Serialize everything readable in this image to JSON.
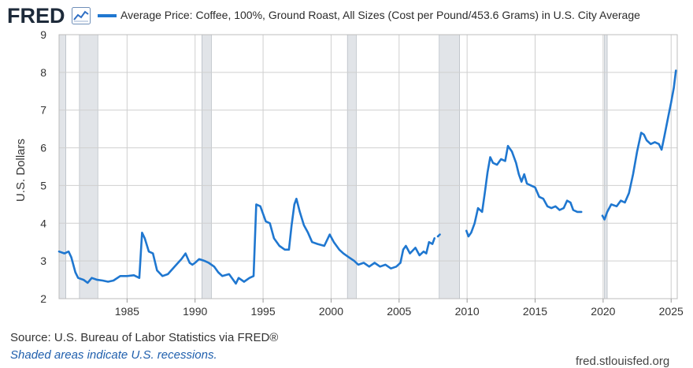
{
  "header": {
    "logo_text": "FRED",
    "logo_icon": "chart-line-icon",
    "legend_label": "Average Price: Coffee, 100%, Ground Roast, All Sizes (Cost per Pound/453.6 Grams) in U.S. City Average",
    "series_color": "#1f77d0"
  },
  "footer": {
    "source": "Source: U.S. Bureau of Labor Statistics via FRED®",
    "shaded_note": "Shaded areas indicate U.S. recessions.",
    "site": "fred.stlouisfed.org"
  },
  "chart_data": {
    "type": "line",
    "title": "",
    "xlabel": "",
    "ylabel": "U.S. Dollars",
    "xlim": [
      1980.0,
      2025.45
    ],
    "ylim": [
      2,
      9
    ],
    "x_ticks": [
      1985,
      1990,
      1995,
      2000,
      2005,
      2010,
      2015,
      2020,
      2025
    ],
    "y_ticks": [
      2,
      3,
      4,
      5,
      6,
      7,
      8,
      9
    ],
    "grid": true,
    "legend_position": "top",
    "recession_color": "#e1e4e8",
    "recessions": [
      [
        1980.0,
        1980.5
      ],
      [
        1981.5,
        1982.85
      ],
      [
        1990.5,
        1991.2
      ],
      [
        2001.2,
        2001.85
      ],
      [
        2007.95,
        2009.45
      ],
      [
        2020.1,
        2020.3
      ]
    ],
    "series": [
      {
        "color": "#1f77d0",
        "segments": [
          [
            [
              1980.0,
              3.25
            ],
            [
              1980.4,
              3.2
            ],
            [
              1980.7,
              3.25
            ],
            [
              1980.9,
              3.1
            ],
            [
              1981.2,
              2.7
            ],
            [
              1981.4,
              2.55
            ],
            [
              1981.8,
              2.5
            ],
            [
              1982.1,
              2.42
            ],
            [
              1982.4,
              2.55
            ],
            [
              1982.8,
              2.5
            ],
            [
              1983.2,
              2.48
            ],
            [
              1983.6,
              2.45
            ],
            [
              1984.0,
              2.48
            ],
            [
              1984.5,
              2.6
            ],
            [
              1985.0,
              2.6
            ],
            [
              1985.5,
              2.62
            ],
            [
              1985.9,
              2.55
            ],
            [
              1986.1,
              3.75
            ],
            [
              1986.3,
              3.6
            ],
            [
              1986.6,
              3.25
            ],
            [
              1986.9,
              3.2
            ],
            [
              1987.2,
              2.75
            ],
            [
              1987.6,
              2.6
            ],
            [
              1988.0,
              2.65
            ],
            [
              1988.5,
              2.85
            ],
            [
              1989.0,
              3.05
            ],
            [
              1989.3,
              3.2
            ],
            [
              1989.6,
              2.95
            ],
            [
              1989.8,
              2.9
            ],
            [
              1990.0,
              2.95
            ],
            [
              1990.3,
              3.05
            ],
            [
              1990.7,
              3.0
            ],
            [
              1991.0,
              2.95
            ],
            [
              1991.4,
              2.85
            ],
            [
              1991.7,
              2.7
            ],
            [
              1992.0,
              2.6
            ],
            [
              1992.5,
              2.65
            ],
            [
              1992.8,
              2.5
            ],
            [
              1993.0,
              2.4
            ],
            [
              1993.2,
              2.55
            ],
            [
              1993.6,
              2.45
            ],
            [
              1994.0,
              2.55
            ],
            [
              1994.3,
              2.6
            ],
            [
              1994.5,
              4.5
            ],
            [
              1994.8,
              4.45
            ],
            [
              1995.2,
              4.05
            ],
            [
              1995.5,
              4.0
            ],
            [
              1995.8,
              3.6
            ],
            [
              1996.2,
              3.4
            ],
            [
              1996.6,
              3.3
            ],
            [
              1996.9,
              3.3
            ],
            [
              1997.1,
              3.95
            ],
            [
              1997.3,
              4.5
            ],
            [
              1997.45,
              4.65
            ],
            [
              1997.7,
              4.3
            ],
            [
              1998.0,
              3.95
            ],
            [
              1998.3,
              3.75
            ],
            [
              1998.6,
              3.5
            ],
            [
              1999.0,
              3.45
            ],
            [
              1999.5,
              3.4
            ],
            [
              1999.9,
              3.7
            ],
            [
              2000.2,
              3.5
            ],
            [
              2000.6,
              3.3
            ],
            [
              2000.9,
              3.2
            ],
            [
              2001.3,
              3.1
            ],
            [
              2001.7,
              3.0
            ],
            [
              2002.0,
              2.9
            ],
            [
              2002.4,
              2.95
            ],
            [
              2002.8,
              2.85
            ],
            [
              2003.2,
              2.95
            ],
            [
              2003.6,
              2.85
            ],
            [
              2004.0,
              2.9
            ],
            [
              2004.4,
              2.8
            ],
            [
              2004.8,
              2.85
            ],
            [
              2005.1,
              2.95
            ],
            [
              2005.3,
              3.3
            ],
            [
              2005.5,
              3.4
            ],
            [
              2005.8,
              3.2
            ],
            [
              2006.2,
              3.35
            ],
            [
              2006.5,
              3.15
            ],
            [
              2006.8,
              3.25
            ],
            [
              2007.0,
              3.2
            ],
            [
              2007.2,
              3.5
            ],
            [
              2007.45,
              3.45
            ],
            [
              2007.6,
              3.6
            ]
          ],
          [
            [
              2007.85,
              3.65
            ],
            [
              2008.0,
              3.7
            ]
          ],
          [
            [
              2009.95,
              3.8
            ],
            [
              2010.1,
              3.65
            ],
            [
              2010.3,
              3.75
            ],
            [
              2010.55,
              4.0
            ],
            [
              2010.8,
              4.4
            ],
            [
              2011.1,
              4.3
            ],
            [
              2011.3,
              4.8
            ],
            [
              2011.5,
              5.35
            ],
            [
              2011.7,
              5.75
            ],
            [
              2011.9,
              5.6
            ],
            [
              2012.2,
              5.55
            ],
            [
              2012.5,
              5.7
            ],
            [
              2012.8,
              5.65
            ],
            [
              2013.0,
              6.05
            ],
            [
              2013.3,
              5.9
            ],
            [
              2013.6,
              5.6
            ],
            [
              2013.8,
              5.3
            ],
            [
              2014.0,
              5.1
            ],
            [
              2014.2,
              5.3
            ],
            [
              2014.4,
              5.05
            ],
            [
              2014.7,
              5.0
            ],
            [
              2015.0,
              4.95
            ],
            [
              2015.3,
              4.7
            ],
            [
              2015.6,
              4.65
            ],
            [
              2015.9,
              4.45
            ],
            [
              2016.2,
              4.4
            ],
            [
              2016.5,
              4.45
            ],
            [
              2016.8,
              4.35
            ],
            [
              2017.1,
              4.4
            ],
            [
              2017.35,
              4.6
            ],
            [
              2017.6,
              4.55
            ],
            [
              2017.8,
              4.35
            ],
            [
              2018.1,
              4.3
            ],
            [
              2018.4,
              4.3
            ]
          ],
          [
            [
              2019.95,
              4.2
            ],
            [
              2020.1,
              4.1
            ],
            [
              2020.3,
              4.3
            ],
            [
              2020.6,
              4.5
            ],
            [
              2021.0,
              4.45
            ],
            [
              2021.3,
              4.6
            ],
            [
              2021.6,
              4.55
            ],
            [
              2021.9,
              4.8
            ],
            [
              2022.2,
              5.3
            ],
            [
              2022.5,
              5.9
            ],
            [
              2022.8,
              6.4
            ],
            [
              2023.0,
              6.35
            ],
            [
              2023.2,
              6.2
            ],
            [
              2023.5,
              6.1
            ],
            [
              2023.8,
              6.15
            ],
            [
              2024.1,
              6.1
            ],
            [
              2024.3,
              5.95
            ],
            [
              2024.5,
              6.3
            ],
            [
              2024.8,
              6.85
            ],
            [
              2025.0,
              7.2
            ],
            [
              2025.2,
              7.6
            ],
            [
              2025.35,
              8.05
            ]
          ]
        ]
      }
    ]
  }
}
